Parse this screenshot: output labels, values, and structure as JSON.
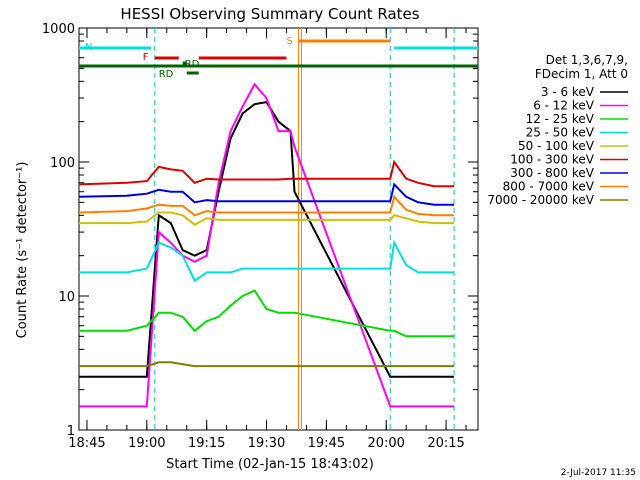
{
  "chart_data": {
    "type": "line",
    "title": "HESSI Observing Summary Count Rates",
    "xlabel": "Start Time (02-Jan-15 18:43:02)",
    "ylabel": "Count Rate (s⁻¹ detector⁻¹)",
    "y_scale": "log",
    "ylim": [
      1,
      1000
    ],
    "xlim": [
      "18:43",
      "20:23"
    ],
    "x_ticks": [
      "18:45",
      "19:00",
      "19:15",
      "19:30",
      "19:45",
      "20:00",
      "20:15"
    ],
    "y_ticks": [
      "1",
      "10",
      "100",
      "1000"
    ],
    "legend_header": [
      "Det 1,3,6,7,9,",
      "FDecim 1, Att 0"
    ],
    "legend_position": "right",
    "footer_date": "2-Jul-2017 11:35",
    "flags": [
      {
        "label": "N",
        "color": "#00e0e0",
        "segments": [
          [
            "18:43",
            "19:01"
          ],
          [
            "20:02",
            "20:23"
          ]
        ]
      },
      {
        "label": "F",
        "color": "#e00000",
        "segments": [
          [
            "19:02",
            "19:08"
          ],
          [
            "19:13",
            "19:35"
          ]
        ]
      },
      {
        "label": "RD",
        "color": "#006400",
        "segments": [
          [
            "19:09",
            "19:10"
          ]
        ]
      },
      {
        "label": "RD",
        "color": "#006400",
        "segments": [
          [
            "19:10",
            "19:13"
          ]
        ]
      },
      {
        "label": "S",
        "color": "#ff8000",
        "segments": [
          [
            "19:38",
            "20:01"
          ]
        ]
      },
      {
        "label": "",
        "color": "#006400",
        "segments": [
          [
            "18:43",
            "20:23"
          ]
        ]
      }
    ],
    "gaps": [
      [
        "19:38",
        "20:01"
      ]
    ],
    "series": [
      {
        "name": "3 - 6 keV",
        "color": "#000000",
        "x": [
          "18:43",
          "18:55",
          "19:00",
          "19:03",
          "19:06",
          "19:09",
          "19:12",
          "19:15",
          "19:18",
          "19:21",
          "19:24",
          "19:27",
          "19:30",
          "19:33",
          "19:36",
          "19:37",
          "20:01",
          "20:02",
          "20:05",
          "20:08",
          "20:12",
          "20:16",
          "20:17"
        ],
        "y": [
          2.5,
          2.5,
          2.5,
          40,
          35,
          22,
          20,
          22,
          60,
          150,
          230,
          270,
          280,
          200,
          170,
          60,
          2.5,
          2.5,
          2.5,
          2.5,
          2.5,
          2.5,
          2.5
        ]
      },
      {
        "name": "6 - 12 keV",
        "color": "#ff00ff",
        "x": [
          "18:43",
          "18:55",
          "19:00",
          "19:03",
          "19:06",
          "19:09",
          "19:12",
          "19:15",
          "19:18",
          "19:21",
          "19:24",
          "19:27",
          "19:30",
          "19:33",
          "19:36",
          "19:37",
          "20:01",
          "20:02",
          "20:05",
          "20:08",
          "20:12",
          "20:16",
          "20:17"
        ],
        "y": [
          1.5,
          1.5,
          1.5,
          30,
          25,
          20,
          18,
          20,
          70,
          170,
          260,
          380,
          300,
          170,
          170,
          130,
          1.5,
          1.5,
          1.5,
          1.5,
          1.5,
          1.5,
          1.5
        ]
      },
      {
        "name": "12 - 25 keV",
        "color": "#00e000",
        "x": [
          "18:43",
          "18:55",
          "19:00",
          "19:03",
          "19:06",
          "19:09",
          "19:12",
          "19:15",
          "19:18",
          "19:21",
          "19:24",
          "19:27",
          "19:30",
          "19:33",
          "19:36",
          "19:37",
          "20:01",
          "20:02",
          "20:05",
          "20:08",
          "20:12",
          "20:16",
          "20:17"
        ],
        "y": [
          5.5,
          5.5,
          6,
          7.5,
          7.5,
          7,
          5.5,
          6.5,
          7,
          8.5,
          10,
          11,
          8,
          7.5,
          7.5,
          7.5,
          5.5,
          5.5,
          5,
          5,
          5,
          5,
          5
        ]
      },
      {
        "name": "25 - 50 keV",
        "color": "#00e0e0",
        "x": [
          "18:43",
          "18:55",
          "19:00",
          "19:03",
          "19:06",
          "19:09",
          "19:12",
          "19:15",
          "19:18",
          "19:21",
          "19:24",
          "19:27",
          "19:30",
          "19:33",
          "19:36",
          "19:37",
          "20:01",
          "20:02",
          "20:05",
          "20:08",
          "20:12",
          "20:16",
          "20:17"
        ],
        "y": [
          15,
          15,
          16,
          25,
          23,
          20,
          13,
          15,
          15,
          15,
          16,
          16,
          16,
          16,
          16,
          16,
          16,
          25,
          17,
          15,
          15,
          15,
          15
        ]
      },
      {
        "name": "50 - 100 keV",
        "color": "#d0c000",
        "x": [
          "18:43",
          "18:55",
          "19:00",
          "19:03",
          "19:06",
          "19:09",
          "19:12",
          "19:15",
          "19:18",
          "19:21",
          "19:24",
          "19:27",
          "19:30",
          "19:33",
          "19:36",
          "19:37",
          "20:01",
          "20:02",
          "20:05",
          "20:08",
          "20:12",
          "20:16",
          "20:17"
        ],
        "y": [
          35,
          35,
          36,
          42,
          42,
          40,
          34,
          38,
          37,
          37,
          37,
          37,
          37,
          37,
          37,
          37,
          37,
          40,
          38,
          36,
          35,
          35,
          35
        ]
      },
      {
        "name": "100 - 300 keV",
        "color": "#e00000",
        "x": [
          "18:43",
          "18:55",
          "19:00",
          "19:03",
          "19:06",
          "19:09",
          "19:12",
          "19:15",
          "19:18",
          "19:21",
          "19:24",
          "19:27",
          "19:30",
          "19:33",
          "19:36",
          "19:37",
          "20:01",
          "20:02",
          "20:05",
          "20:08",
          "20:12",
          "20:16",
          "20:17"
        ],
        "y": [
          68,
          70,
          72,
          92,
          88,
          86,
          70,
          75,
          74,
          74,
          74,
          74,
          74,
          74,
          75,
          75,
          75,
          100,
          75,
          70,
          66,
          66,
          66
        ]
      },
      {
        "name": "300 - 800 keV",
        "color": "#0000e0",
        "x": [
          "18:43",
          "18:55",
          "19:00",
          "19:03",
          "19:06",
          "19:09",
          "19:12",
          "19:15",
          "19:18",
          "19:21",
          "19:24",
          "19:27",
          "19:30",
          "19:33",
          "19:36",
          "19:37",
          "20:01",
          "20:02",
          "20:05",
          "20:08",
          "20:12",
          "20:16",
          "20:17"
        ],
        "y": [
          55,
          56,
          58,
          62,
          60,
          60,
          50,
          52,
          51,
          51,
          51,
          51,
          51,
          51,
          51,
          51,
          51,
          68,
          55,
          50,
          48,
          48,
          48
        ]
      },
      {
        "name": "800 - 7000 keV",
        "color": "#ff8000",
        "x": [
          "18:43",
          "18:55",
          "19:00",
          "19:03",
          "19:06",
          "19:09",
          "19:12",
          "19:15",
          "19:18",
          "19:21",
          "19:24",
          "19:27",
          "19:30",
          "19:33",
          "19:36",
          "19:37",
          "20:01",
          "20:02",
          "20:05",
          "20:08",
          "20:12",
          "20:16",
          "20:17"
        ],
        "y": [
          42,
          43,
          45,
          48,
          47,
          47,
          40,
          43,
          42,
          42,
          42,
          42,
          42,
          42,
          42,
          42,
          42,
          55,
          44,
          41,
          40,
          40,
          40
        ]
      },
      {
        "name": "7000 - 20000 keV",
        "color": "#808000",
        "x": [
          "18:43",
          "18:55",
          "19:00",
          "19:03",
          "19:06",
          "19:09",
          "19:12",
          "19:15",
          "19:18",
          "19:21",
          "19:24",
          "19:27",
          "19:30",
          "19:33",
          "19:36",
          "19:37",
          "20:01",
          "20:02",
          "20:05",
          "20:08",
          "20:12",
          "20:16",
          "20:17"
        ],
        "y": [
          3,
          3,
          3,
          3.2,
          3.2,
          3.1,
          3,
          3,
          3,
          3,
          3,
          3,
          3,
          3,
          3,
          3,
          3,
          3,
          3,
          3,
          3,
          3,
          3
        ]
      }
    ]
  }
}
